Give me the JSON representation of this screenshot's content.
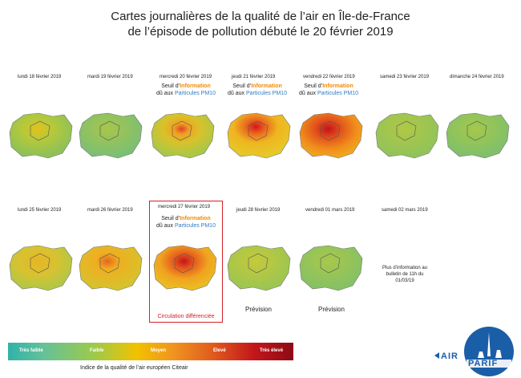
{
  "header": {
    "line1": "Cartes journalières de la qualité de l’air en Île-de-France",
    "line2": "de l’épisode de pollution débuté le 20 février 2019"
  },
  "days": [
    {
      "label": "lundi 18 février 2019"
    },
    {
      "label": "mardi 19 février 2019"
    },
    {
      "label": "mercredi 20 février 2019",
      "seuil": true
    },
    {
      "label": "jeudi 21 février 2019",
      "seuil": true
    },
    {
      "label": "vendredi 22 février 2019",
      "seuil": true
    },
    {
      "label": "samedi 23 février 2019"
    },
    {
      "label": "dimanche 24 février 2019"
    },
    {
      "label": "lundi 25 février 2019"
    },
    {
      "label": "mardi 26 février 2019"
    },
    {
      "label": "mercredi 27 février 2019",
      "seuil": true
    },
    {
      "label": "jeudi 28 février 2019",
      "prevision": true
    },
    {
      "label": "vendredi 01 mars 2019",
      "prevision": true
    },
    {
      "label": "samedi 02 mars 2019"
    }
  ],
  "seuil": {
    "prefix": "Seuil d’",
    "word": "Information",
    "due": "dû aux ",
    "pollutant": "Particules PM10"
  },
  "prevision_label": "Prévision",
  "circulation_label": "Circulation différenciée",
  "info_note": "Plus d’information au bulletin de 11h du 01/03/19",
  "scale": {
    "labels": [
      "Très faible",
      "Faible",
      "Moyen",
      "Elevé",
      "Très élevé"
    ],
    "caption": "Indice de la qualité de l’air européen Citeair"
  },
  "logo": {
    "text_air": "AIR",
    "text_parif": "PARIF"
  },
  "colors": {
    "very_low": "#2fb3a8",
    "low": "#9cca4c",
    "medium": "#f1c200",
    "high": "#e05a1e",
    "very_high": "#8d0a14",
    "logo_blue": "#1b5ea8",
    "highlight_red": "#d62027"
  }
}
